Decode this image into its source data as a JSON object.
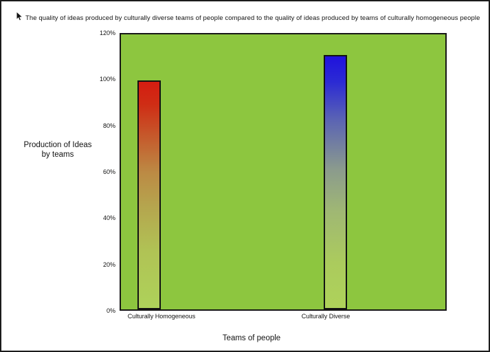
{
  "window": {
    "background_color": "#ffffff",
    "frame_border_color": "#1b1b1b"
  },
  "title": "The quality of ideas produced by culturally diverse teams of people compared to the quality of ideas produced by teams of culturally homogeneous people",
  "icons": {
    "cursor": "mouse-pointer-arrow"
  },
  "chart_data": {
    "type": "bar",
    "title": "The quality of ideas produced by culturally diverse teams of people compared to the quality of ideas produced by teams of culturally homogeneous people",
    "categories": [
      "Culturally Homogeneous",
      "Culturally Diverse"
    ],
    "values": [
      100,
      111
    ],
    "value_unit": "%",
    "xlabel": "Teams of people",
    "ylabel": "Production of Ideas by teams",
    "ylabel_line1": "Production of Ideas",
    "ylabel_line2": "by teams",
    "ylim": [
      0,
      120
    ],
    "ytick_step": 20,
    "yticks": [
      "120%",
      "100%",
      "80%",
      "60%",
      "40%",
      "20%",
      "0%"
    ],
    "grid": false,
    "legend_position": "none",
    "plot_background": "#8dc63f",
    "plot_border_color": "#161616",
    "bar_border_color": "#121212",
    "bars": [
      {
        "name": "culturally-homogeneous",
        "value": 100,
        "top_color": "#d41d11",
        "bottom_color": "#aed25a",
        "gradient_stops": [
          {
            "c": "#d41d11",
            "p": 0
          },
          {
            "c": "#cf2d15",
            "p": 10
          },
          {
            "c": "#c55c2d",
            "p": 25
          },
          {
            "c": "#bc8a44",
            "p": 40
          },
          {
            "c": "#b5a54e",
            "p": 55
          },
          {
            "c": "#b0c355",
            "p": 75
          },
          {
            "c": "#aed25a",
            "p": 100
          }
        ]
      },
      {
        "name": "culturally-diverse",
        "value": 111,
        "top_color": "#2012dd",
        "bottom_color": "#aed25a",
        "gradient_stops": [
          {
            "c": "#2012dd",
            "p": 0
          },
          {
            "c": "#2b2ad4",
            "p": 10
          },
          {
            "c": "#5a63b4",
            "p": 25
          },
          {
            "c": "#8b9b8d",
            "p": 45
          },
          {
            "c": "#a0b873",
            "p": 62
          },
          {
            "c": "#abcb5d",
            "p": 82
          },
          {
            "c": "#aed25a",
            "p": 100
          }
        ]
      }
    ]
  }
}
